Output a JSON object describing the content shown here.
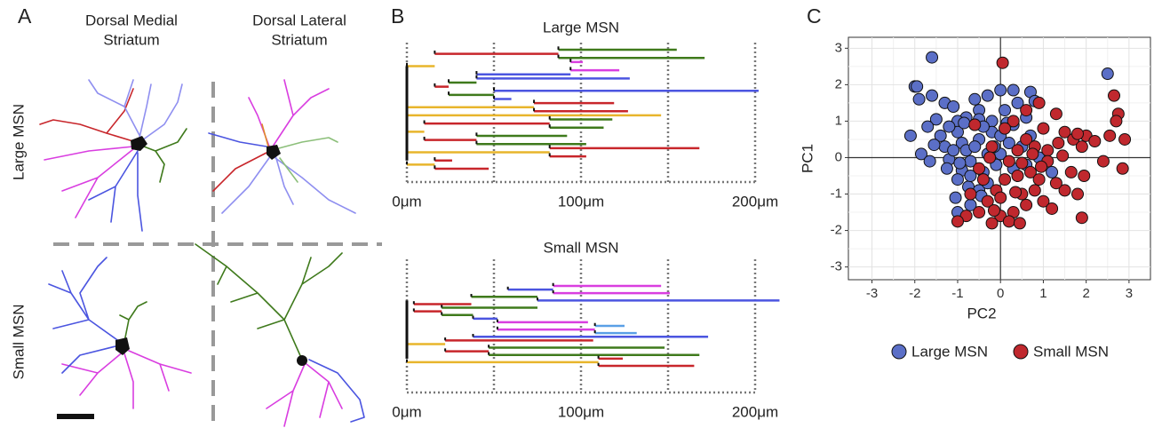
{
  "panel_a": {
    "letter": "A",
    "columns": [
      [
        "Dorsal Medial",
        "Striatum"
      ],
      [
        "Dorsal Lateral",
        "Striatum"
      ]
    ],
    "rows": [
      "Large MSN",
      "Small MSN"
    ]
  },
  "chart_data": [
    {
      "type": "dendrogram",
      "panel_label": "B",
      "title": "Large MSN",
      "xlim": [
        0,
        215
      ],
      "xticks": [
        {
          "value": 0,
          "label": "0μm"
        },
        {
          "value": 100,
          "label": "100μm"
        },
        {
          "value": 200,
          "label": "200μm"
        }
      ],
      "xgrid": [
        0,
        50,
        100,
        150,
        200
      ],
      "branches": [
        {
          "x0": 87,
          "x1": 155,
          "color": "#3f7a1c"
        },
        {
          "x0": 16,
          "x1": 87,
          "color": "#c8262b"
        },
        {
          "x0": 87,
          "x1": 171,
          "color": "#3f7a1c"
        },
        {
          "x0": 94,
          "x1": 101,
          "color": "#d93ee0"
        },
        {
          "x0": 0,
          "x1": 16,
          "color": "#e8b52c"
        },
        {
          "x0": 94,
          "x1": 122,
          "color": "#d93ee0"
        },
        {
          "x0": 40,
          "x1": 94,
          "color": "#4b55e0"
        },
        {
          "x0": 40,
          "x1": 128,
          "color": "#4b55e0"
        },
        {
          "x0": 24,
          "x1": 40,
          "color": "#3f7a1c"
        },
        {
          "x0": 16,
          "x1": 24,
          "color": "#c8262b"
        },
        {
          "x0": 50,
          "x1": 202,
          "color": "#4b55e0"
        },
        {
          "x0": 24,
          "x1": 50,
          "color": "#3f7a1c"
        },
        {
          "x0": 50,
          "x1": 60,
          "color": "#4b55e0"
        },
        {
          "x0": 73,
          "x1": 119,
          "color": "#c8262b"
        },
        {
          "x0": 0,
          "x1": 73,
          "color": "#e8b52c"
        },
        {
          "x0": 73,
          "x1": 127,
          "color": "#c8262b"
        },
        {
          "x0": 0,
          "x1": 146,
          "color": "#e8b52c"
        },
        {
          "x0": 82,
          "x1": 118,
          "color": "#3f7a1c"
        },
        {
          "x0": 10,
          "x1": 82,
          "color": "#c8262b"
        },
        {
          "x0": 82,
          "x1": 113,
          "color": "#3f7a1c"
        },
        {
          "x0": 0,
          "x1": 10,
          "color": "#e8b52c"
        },
        {
          "x0": 40,
          "x1": 92,
          "color": "#3f7a1c"
        },
        {
          "x0": 10,
          "x1": 40,
          "color": "#c8262b"
        },
        {
          "x0": 40,
          "x1": 103,
          "color": "#3f7a1c"
        },
        {
          "x0": 82,
          "x1": 168,
          "color": "#c8262b"
        },
        {
          "x0": 0,
          "x1": 82,
          "color": "#e8b52c"
        },
        {
          "x0": 82,
          "x1": 103,
          "color": "#c8262b"
        },
        {
          "x0": 16,
          "x1": 26,
          "color": "#c8262b"
        },
        {
          "x0": 0,
          "x1": 16,
          "color": "#e8b52c"
        },
        {
          "x0": 16,
          "x1": 47,
          "color": "#c8262b"
        }
      ]
    },
    {
      "type": "dendrogram",
      "title": "Small MSN",
      "xlim": [
        0,
        215
      ],
      "xticks": [
        {
          "value": 0,
          "label": "0μm"
        },
        {
          "value": 100,
          "label": "100μm"
        },
        {
          "value": 200,
          "label": "200μm"
        }
      ],
      "xgrid": [
        0,
        50,
        100,
        150,
        200
      ],
      "branches": [
        {
          "x0": 84,
          "x1": 146,
          "color": "#d93ee0"
        },
        {
          "x0": 58,
          "x1": 84,
          "color": "#4b55e0"
        },
        {
          "x0": 84,
          "x1": 151,
          "color": "#d93ee0"
        },
        {
          "x0": 37,
          "x1": 75,
          "color": "#3f7a1c"
        },
        {
          "x0": 75,
          "x1": 214,
          "color": "#4b55e0"
        },
        {
          "x0": 4,
          "x1": 37,
          "color": "#c8262b"
        },
        {
          "x0": 20,
          "x1": 75,
          "color": "#3f7a1c"
        },
        {
          "x0": 4,
          "x1": 20,
          "color": "#c8262b"
        },
        {
          "x0": 20,
          "x1": 38,
          "color": "#3f7a1c"
        },
        {
          "x0": 38,
          "x1": 52,
          "color": "#4b55e0"
        },
        {
          "x0": 52,
          "x1": 104,
          "color": "#d93ee0"
        },
        {
          "x0": 108,
          "x1": 125,
          "color": "#5aa0e6"
        },
        {
          "x0": 52,
          "x1": 108,
          "color": "#d93ee0"
        },
        {
          "x0": 108,
          "x1": 132,
          "color": "#5aa0e6"
        },
        {
          "x0": 38,
          "x1": 173,
          "color": "#4b55e0"
        },
        {
          "x0": 22,
          "x1": 107,
          "color": "#c8262b"
        },
        {
          "x0": 0,
          "x1": 22,
          "color": "#e8b52c"
        },
        {
          "x0": 47,
          "x1": 148,
          "color": "#3f7a1c"
        },
        {
          "x0": 22,
          "x1": 47,
          "color": "#c8262b"
        },
        {
          "x0": 47,
          "x1": 168,
          "color": "#3f7a1c"
        },
        {
          "x0": 110,
          "x1": 124,
          "color": "#c8262b"
        },
        {
          "x0": 0,
          "x1": 110,
          "color": "#e8b52c"
        },
        {
          "x0": 110,
          "x1": 165,
          "color": "#c8262b"
        }
      ]
    },
    {
      "type": "scatter",
      "panel_label": "C",
      "x_label": "PC2",
      "y_label": "PC1",
      "xlim": [
        -3.55,
        3.5
      ],
      "ylim": [
        -3.35,
        3.3
      ],
      "xticks": [
        -3,
        -2,
        -1,
        0,
        1,
        2,
        3
      ],
      "yticks": [
        -3,
        -2,
        -1,
        0,
        1,
        2,
        3
      ],
      "grid": true,
      "zero_lines": true,
      "legend": "bottom",
      "series": [
        {
          "name": "Large MSN",
          "color": "#5b6fc7",
          "x": [
            -1.6,
            -2.0,
            -1.95,
            -1.6,
            -1.9,
            -1.3,
            -1.1,
            -0.5,
            -0.3,
            0.0,
            0.3,
            0.7,
            -0.6,
            0.4,
            0.1,
            -0.2,
            -0.5,
            -0.8,
            -1.0,
            -1.5,
            -1.7,
            -2.1,
            -1.85,
            -1.4,
            -1.3,
            -1.2,
            -1.25,
            -1.0,
            -0.9,
            -0.8,
            -0.7,
            -0.9,
            -1.0,
            -0.75,
            -1.05,
            -1.0,
            -0.7,
            -0.5,
            -0.4,
            -0.3,
            -0.5,
            -0.2,
            -0.6,
            0.0,
            0.2,
            0.3,
            0.6,
            0.5,
            0.7,
            0.6,
            0.9,
            1.2,
            0.3,
            -0.1,
            0.0,
            -1.55,
            -1.65,
            -1.1,
            -0.95,
            -0.6,
            -0.4,
            -0.15,
            2.5,
            0.8,
            -0.85,
            -0.7,
            -0.45,
            -1.2,
            -0.3,
            0.15
          ],
          "values": [
            2.75,
            1.95,
            1.95,
            1.7,
            1.6,
            1.5,
            1.4,
            1.3,
            1.7,
            1.85,
            1.85,
            1.8,
            1.6,
            1.5,
            1.3,
            1.0,
            1.05,
            1.1,
            1.0,
            1.05,
            0.85,
            0.6,
            0.1,
            0.6,
            0.3,
            -0.05,
            -0.3,
            0.7,
            0.4,
            0.2,
            -0.1,
            -0.35,
            -0.6,
            -0.8,
            -1.1,
            -1.5,
            -1.3,
            -0.9,
            -0.4,
            0.1,
            0.5,
            0.7,
            0.9,
            0.6,
            0.4,
            0.9,
            1.1,
            0.3,
            0.6,
            -0.2,
            0.0,
            -0.4,
            -0.3,
            -0.2,
            0.1,
            0.35,
            -0.1,
            0.2,
            -0.15,
            0.3,
            0.85,
            0.3,
            2.3,
            1.55,
            0.95,
            -0.5,
            -1.05,
            0.85,
            -0.7,
            0.95
          ]
        },
        {
          "name": "Small MSN",
          "color": "#c0282e",
          "x": [
            0.05,
            2.65,
            2.75,
            2.7,
            2.9,
            2.55,
            2.85,
            2.0,
            2.2,
            2.4,
            1.5,
            1.7,
            1.9,
            1.35,
            1.1,
            1.0,
            0.9,
            0.6,
            0.3,
            1.3,
            1.65,
            1.5,
            1.3,
            1.8,
            1.9,
            1.0,
            0.8,
            0.5,
            0.3,
            0.0,
            -0.2,
            -0.5,
            -0.8,
            -1.0,
            -0.3,
            -0.1,
            0.1,
            0.4,
            0.7,
            0.9,
            1.1,
            0.2,
            -0.2,
            0.4,
            0.6,
            0.8,
            0.1,
            -0.6,
            -0.5,
            -0.7,
            -0.4,
            0.0,
            0.6,
            0.2,
            1.45,
            1.2,
            0.45,
            -0.15,
            0.75,
            1.8,
            1.95,
            0.35,
            0.95,
            -0.25,
            0.5
          ],
          "values": [
            2.6,
            1.7,
            1.2,
            1.0,
            0.5,
            0.6,
            -0.3,
            0.6,
            0.45,
            -0.1,
            0.7,
            0.5,
            0.3,
            0.4,
            0.2,
            0.8,
            1.5,
            1.3,
            1.0,
            1.2,
            -0.4,
            -0.9,
            -0.7,
            -1.0,
            -1.65,
            -1.2,
            -0.9,
            -1.0,
            -1.5,
            -1.6,
            -1.8,
            -1.5,
            -1.6,
            -1.75,
            -1.2,
            -0.9,
            -0.6,
            -0.5,
            -0.4,
            -0.6,
            -0.1,
            -0.1,
            0.3,
            0.2,
            0.5,
            0.3,
            0.8,
            0.9,
            -0.3,
            -1.0,
            -0.6,
            -1.1,
            -1.3,
            -1.75,
            0.05,
            -1.4,
            -1.8,
            -1.45,
            0.1,
            0.65,
            -0.5,
            -0.95,
            -0.25,
            0.0,
            -0.15
          ]
        }
      ]
    }
  ]
}
